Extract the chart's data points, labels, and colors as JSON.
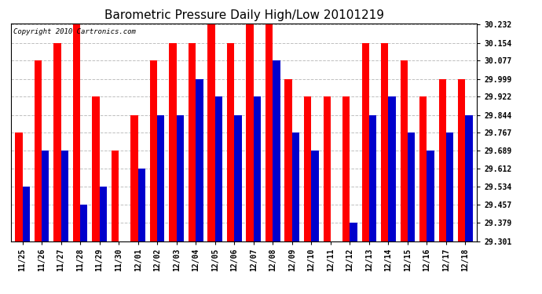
{
  "title": "Barometric Pressure Daily High/Low 20101219",
  "copyright": "Copyright 2010 Cartronics.com",
  "dates": [
    "11/25",
    "11/26",
    "11/27",
    "11/28",
    "11/29",
    "11/30",
    "12/01",
    "12/02",
    "12/03",
    "12/04",
    "12/05",
    "12/06",
    "12/07",
    "12/08",
    "12/09",
    "12/10",
    "12/11",
    "12/12",
    "12/13",
    "12/14",
    "12/15",
    "12/16",
    "12/17",
    "12/18"
  ],
  "highs": [
    29.767,
    30.077,
    30.154,
    30.232,
    29.922,
    29.689,
    29.844,
    30.077,
    30.154,
    30.154,
    30.232,
    30.154,
    30.232,
    30.232,
    29.999,
    29.922,
    29.922,
    29.922,
    30.154,
    30.154,
    30.077,
    29.922,
    29.999,
    29.999
  ],
  "lows": [
    29.534,
    29.689,
    29.689,
    29.457,
    29.534,
    29.301,
    29.612,
    29.844,
    29.844,
    29.999,
    29.922,
    29.844,
    29.922,
    30.077,
    29.767,
    29.689,
    29.301,
    29.379,
    29.844,
    29.922,
    29.767,
    29.689,
    29.767,
    29.844
  ],
  "ymin": 29.301,
  "ymax": 30.232,
  "yticks": [
    30.232,
    30.154,
    30.077,
    29.999,
    29.922,
    29.844,
    29.767,
    29.689,
    29.612,
    29.534,
    29.457,
    29.379,
    29.301
  ],
  "bar_width": 0.38,
  "high_color": "#ff0000",
  "low_color": "#0000cc",
  "bg_color": "#ffffff",
  "grid_color": "#b0b0b0",
  "title_fontsize": 11,
  "tick_fontsize": 7,
  "copyright_fontsize": 6.5
}
